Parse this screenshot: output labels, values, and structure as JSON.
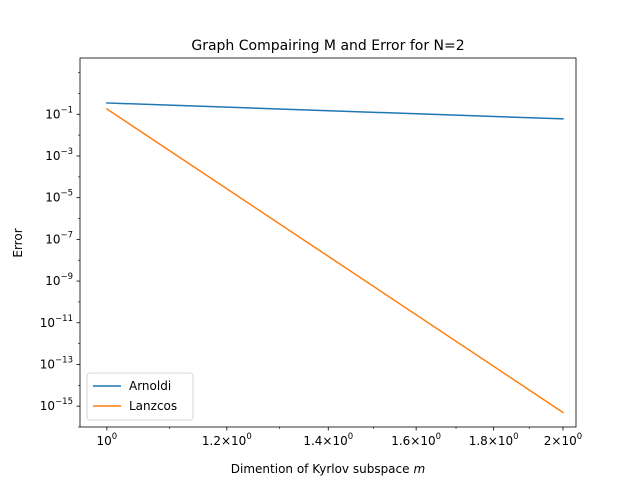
{
  "chart_data": {
    "type": "line",
    "title": "Graph Compairing M and Error for N=2",
    "xlabel": "Dimention of Kyrlov subspace",
    "xlabel_var": "m",
    "ylabel": "Error",
    "xscale": "log",
    "yscale": "log",
    "xlim": [
      0.96,
      2.04
    ],
    "ylim_exp": [
      -16.0,
      1.7
    ],
    "grid": false,
    "legend_position": "lower-left",
    "x_ticks": [
      {
        "value": 1.0,
        "mantissa": "",
        "exp": "0",
        "base": "10"
      },
      {
        "value": 1.2,
        "mantissa": "1.2",
        "exp": "0",
        "base": "10"
      },
      {
        "value": 1.4,
        "mantissa": "1.4",
        "exp": "0",
        "base": "10"
      },
      {
        "value": 1.6,
        "mantissa": "1.6",
        "exp": "0",
        "base": "10"
      },
      {
        "value": 1.8,
        "mantissa": "1.8",
        "exp": "0",
        "base": "10"
      },
      {
        "value": 2.0,
        "mantissa": "2",
        "exp": "0",
        "base": "10"
      }
    ],
    "y_ticks": [
      {
        "exp_value": -1,
        "base": "10",
        "exp": "−1"
      },
      {
        "exp_value": -3,
        "base": "10",
        "exp": "−3"
      },
      {
        "exp_value": -5,
        "base": "10",
        "exp": "−5"
      },
      {
        "exp_value": -7,
        "base": "10",
        "exp": "−7"
      },
      {
        "exp_value": -9,
        "base": "10",
        "exp": "−9"
      },
      {
        "exp_value": -11,
        "base": "10",
        "exp": "−11"
      },
      {
        "exp_value": -13,
        "base": "10",
        "exp": "−13"
      },
      {
        "exp_value": -15,
        "base": "10",
        "exp": "−15"
      }
    ],
    "series": [
      {
        "name": "Arnoldi",
        "color": "#1f77b4",
        "x": [
          1,
          2
        ],
        "y": [
          0.35,
          0.06
        ]
      },
      {
        "name": "Lanzcos",
        "color": "#ff7f0e",
        "x": [
          1,
          2
        ],
        "y": [
          0.18,
          5e-16
        ]
      }
    ]
  }
}
